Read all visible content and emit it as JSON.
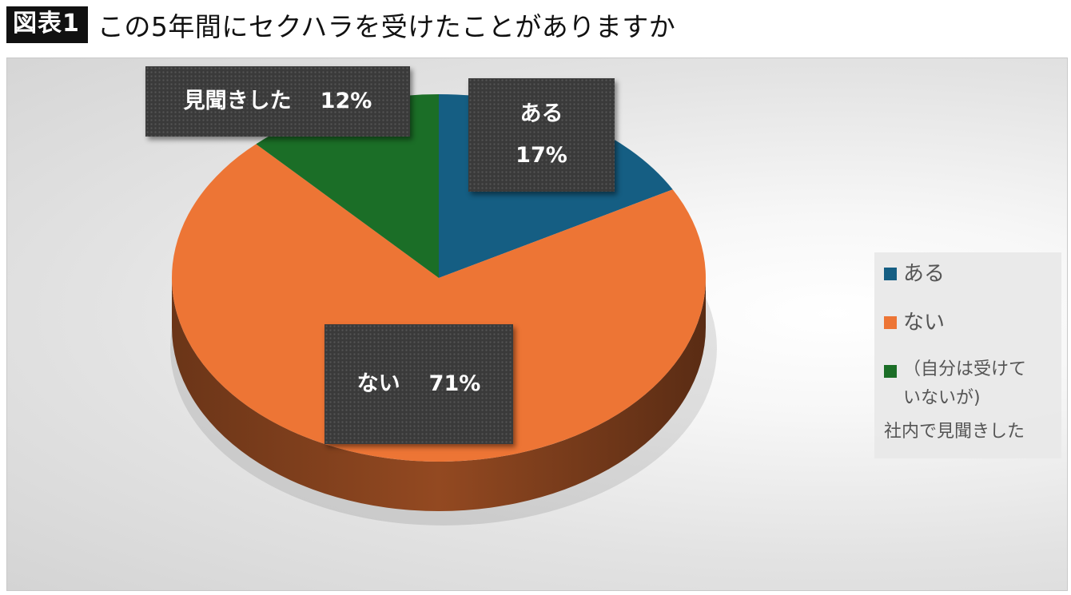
{
  "figure": {
    "badge": "図表1",
    "title": "この5年間にセクハラを受けたことがありますか"
  },
  "chart_data": {
    "type": "pie",
    "title": "この5年間にセクハラを受けたことがありますか",
    "slices": [
      {
        "label": "ある",
        "value": 17,
        "display": "17%",
        "color": "#155E83"
      },
      {
        "label": "ない",
        "value": 71,
        "display": "71%",
        "color": "#ED7535"
      },
      {
        "label": "見聞きした",
        "value": 12,
        "display": "12%",
        "color": "#1B6E27"
      }
    ],
    "legend": {
      "placement": "right",
      "items": [
        {
          "lines": [
            "ある"
          ],
          "color": "#155E83"
        },
        {
          "lines": [
            "ない"
          ],
          "color": "#ED7535"
        },
        {
          "lines": [
            "（自分は受けて",
            "いないが)",
            "社内で見聞きした"
          ],
          "color": "#1B6E27"
        }
      ]
    }
  }
}
